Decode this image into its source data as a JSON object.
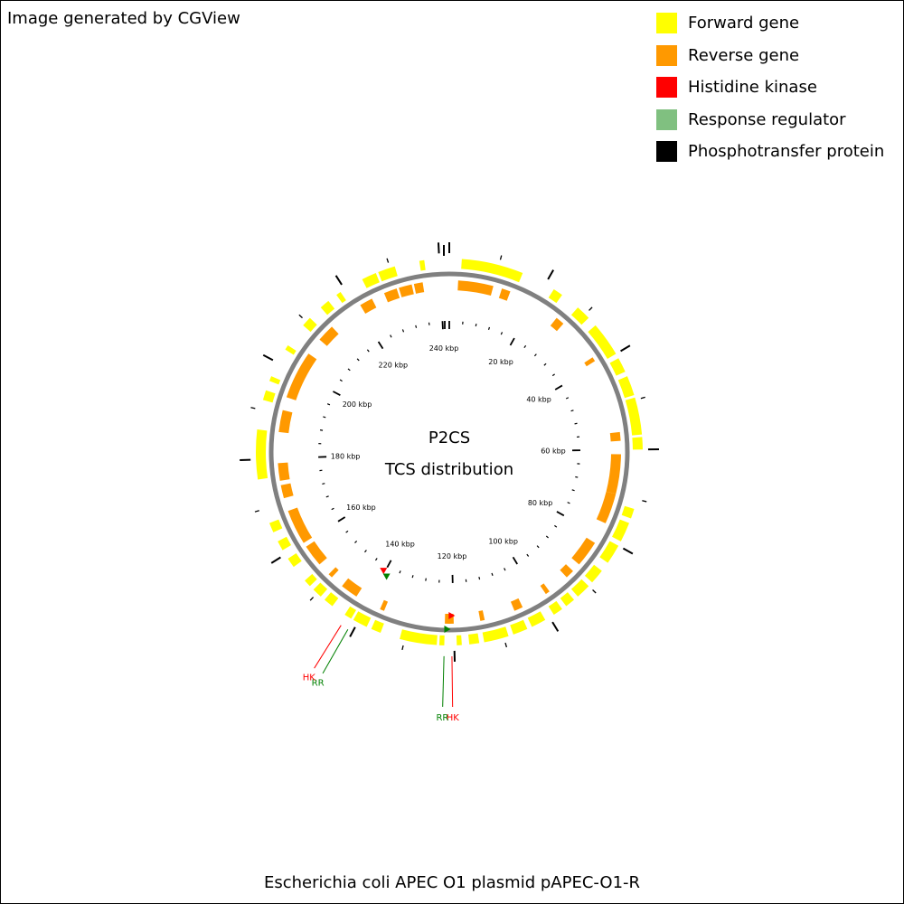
{
  "credit": "Image generated by CGView",
  "legend": [
    {
      "label": "Forward gene",
      "color": "#ffff00"
    },
    {
      "label": "Reverse gene",
      "color": "#ff9900"
    },
    {
      "label": "Histidine kinase",
      "color": "#ff0000"
    },
    {
      "label": "Response regulator",
      "color": "#80c080"
    },
    {
      "label": "Phosphotransfer protein",
      "color": "#000000"
    }
  ],
  "center": {
    "line1": "P2CS",
    "line2": "TCS distribution"
  },
  "footer": "Escherichia coli APEC O1 plasmid pAPEC-O1-R",
  "sequence_length_kbp": 242,
  "ruler_labels": [
    "240 kbp",
    "20 kbp",
    "40 kbp",
    "60 kbp",
    "80 kbp",
    "100 kbp",
    "120 kbp",
    "140 kbp",
    "160 kbp",
    "180 kbp",
    "200 kbp",
    "220 kbp"
  ],
  "ruler_label_values_kbp": [
    240,
    20,
    40,
    60,
    80,
    100,
    120,
    140,
    160,
    180,
    200,
    220
  ],
  "colors": {
    "forward": "#ffff00",
    "reverse": "#ff9900",
    "backbone": "#808080",
    "hk": "#ff0000",
    "rr": "#008000"
  },
  "forward_genes_kbp": [
    [
      2.5,
      15
    ],
    [
      22,
      24
    ],
    [
      28,
      31
    ],
    [
      33,
      40
    ],
    [
      41,
      44
    ],
    [
      45,
      49
    ],
    [
      49.5,
      57
    ],
    [
      57.5,
      60
    ],
    [
      72,
      74
    ],
    [
      75,
      79
    ],
    [
      80,
      84
    ],
    [
      86,
      89
    ],
    [
      90,
      93
    ],
    [
      94,
      96
    ],
    [
      97,
      99
    ],
    [
      101,
      104
    ],
    [
      105,
      108
    ],
    [
      109,
      114
    ],
    [
      115,
      117
    ],
    [
      118.5,
      119.5
    ],
    [
      122,
      123
    ],
    [
      123.5,
      131
    ],
    [
      135,
      137
    ],
    [
      138,
      141
    ],
    [
      141.5,
      143
    ],
    [
      146,
      148
    ],
    [
      149,
      151
    ],
    [
      152,
      153.5
    ],
    [
      157,
      159
    ],
    [
      161,
      163
    ],
    [
      165,
      167
    ],
    [
      176,
      186
    ],
    [
      192,
      194
    ],
    [
      196,
      197
    ],
    [
      203,
      204
    ],
    [
      209,
      211
    ],
    [
      214,
      216
    ],
    [
      218,
      219
    ],
    [
      224,
      227
    ],
    [
      227.5,
      231
    ],
    [
      236,
      237
    ]
  ],
  "reverse_genes_kbp": [
    [
      2,
      10
    ],
    [
      12,
      14
    ],
    [
      26,
      28
    ],
    [
      38,
      39
    ],
    [
      56,
      58
    ],
    [
      61,
      70
    ],
    [
      70,
      77
    ],
    [
      82,
      88
    ],
    [
      90,
      92
    ],
    [
      97,
      98
    ],
    [
      104,
      106
    ],
    [
      113,
      114
    ],
    [
      120,
      122
    ],
    [
      136,
      137
    ],
    [
      143,
      147
    ],
    [
      150,
      151
    ],
    [
      154,
      159
    ],
    [
      160,
      168
    ],
    [
      171,
      174
    ],
    [
      175,
      179
    ],
    [
      186,
      191
    ],
    [
      194,
      205
    ],
    [
      209,
      213
    ],
    [
      221,
      224
    ],
    [
      227,
      230
    ],
    [
      230.5,
      233.5
    ],
    [
      234,
      236
    ]
  ],
  "hk_markers_kbp": [
    120.5,
    140.5
  ],
  "rr_markers_kbp": [
    121.5,
    139
  ],
  "callouts": [
    {
      "label": "HK",
      "kind": "hk",
      "at_kbp": 120.5
    },
    {
      "label": "RR",
      "kind": "rr",
      "at_kbp": 122
    },
    {
      "label": "RR",
      "kind": "rr",
      "at_kbp": 141
    },
    {
      "label": "HK",
      "kind": "hk",
      "at_kbp": 142.5
    }
  ]
}
